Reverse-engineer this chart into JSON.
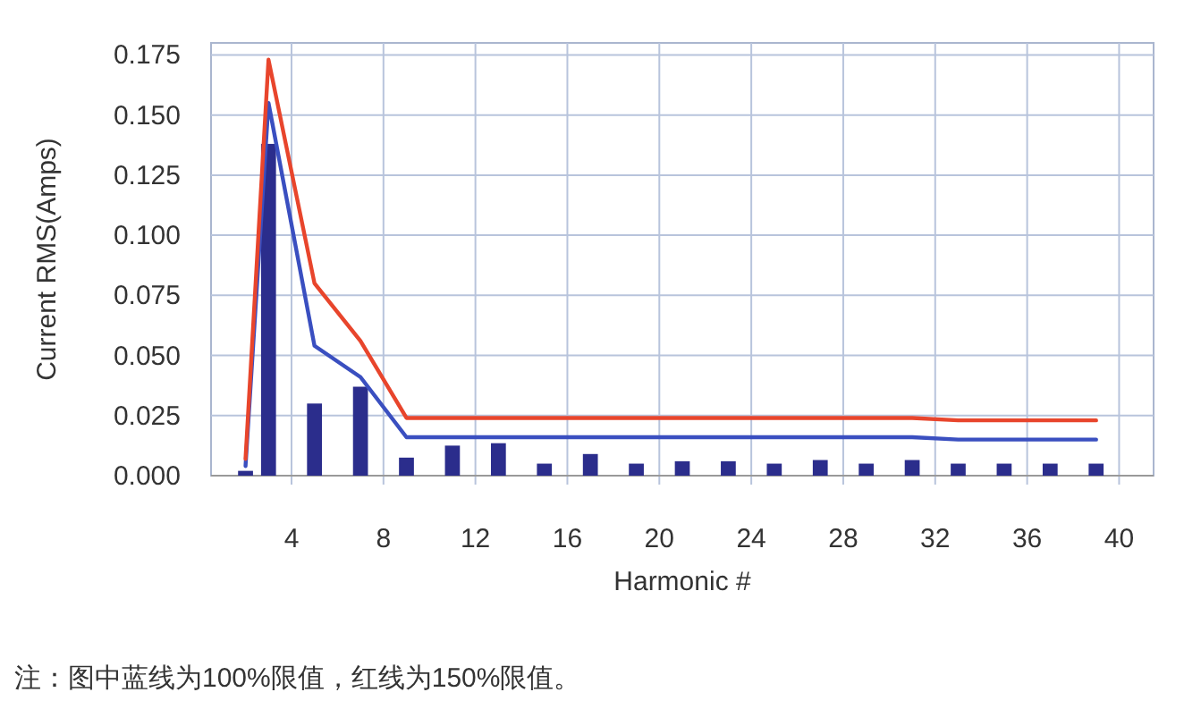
{
  "chart_data": {
    "type": "bar",
    "xlabel": "Harmonic #",
    "ylabel": "Current RMS(Amps)",
    "annotations": [
      "注：图中蓝线为100%限值，红线为150%限值。"
    ],
    "xlim": [
      0.5,
      41.5
    ],
    "ylim": [
      0,
      0.18
    ],
    "xticks": [
      4,
      8,
      12,
      16,
      20,
      24,
      28,
      32,
      36,
      40
    ],
    "yticks": [
      {
        "value": 0,
        "label": "0.000"
      },
      {
        "value": 0.025,
        "label": "0.025"
      },
      {
        "value": 0.05,
        "label": "0.050"
      },
      {
        "value": 0.075,
        "label": "0.075"
      },
      {
        "value": 0.1,
        "label": "0.100"
      },
      {
        "value": 0.125,
        "label": "0.125"
      },
      {
        "value": 0.15,
        "label": "0.150"
      },
      {
        "value": 0.175,
        "label": "0.175"
      }
    ],
    "grid": true,
    "series": [
      {
        "color": "#2b2d8c",
        "x": [
          2,
          3,
          5,
          7,
          9,
          11,
          13,
          15,
          17,
          19,
          21,
          23,
          25,
          27,
          29,
          31,
          33,
          35,
          37,
          39
        ],
        "values": [
          0.002,
          0.138,
          0.03,
          0.037,
          0.0075,
          0.0125,
          0.0135,
          0.005,
          0.009,
          0.005,
          0.006,
          0.006,
          0.005,
          0.0065,
          0.005,
          0.0065,
          0.005,
          0.005,
          0.005,
          0.005
        ]
      },
      {
        "type": "line",
        "color": "#3a4fc0",
        "x": [
          2,
          3,
          5,
          7,
          9,
          31,
          33,
          39
        ],
        "values": [
          0.004,
          0.155,
          0.054,
          0.041,
          0.016,
          0.016,
          0.015,
          0.015
        ]
      },
      {
        "type": "line",
        "color": "#e8452c",
        "x": [
          2,
          3,
          5,
          7,
          9,
          31,
          33,
          39
        ],
        "values": [
          0.007,
          0.173,
          0.08,
          0.056,
          0.024,
          0.024,
          0.023,
          0.023
        ]
      }
    ]
  }
}
